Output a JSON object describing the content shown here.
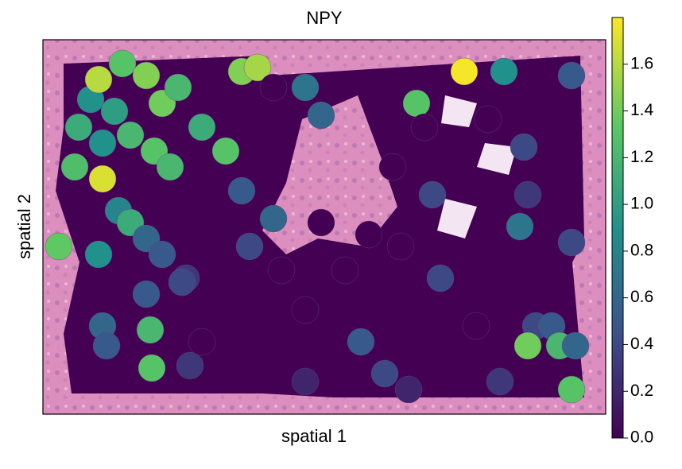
{
  "chart_data": {
    "type": "spatial",
    "title": "NPY",
    "xlabel": "spatial 1",
    "ylabel": "spatial 2",
    "colormap": "viridis",
    "clim": [
      0,
      1.8
    ],
    "cticks": [
      {
        "value": 0,
        "label": "0.0"
      },
      {
        "value": 0.2,
        "label": "0.2"
      },
      {
        "value": 0.4,
        "label": "0.4"
      },
      {
        "value": 0.6,
        "label": "0.6"
      },
      {
        "value": 0.8,
        "label": "0.8"
      },
      {
        "value": 1.0,
        "label": "1.0"
      },
      {
        "value": 1.2,
        "label": "1.2"
      },
      {
        "value": 1.4,
        "label": "1.4"
      },
      {
        "value": 1.6,
        "label": "1.6"
      }
    ],
    "xlim": [
      0,
      708
    ],
    "ylim": [
      471,
      0
    ],
    "x": [
      100,
      130,
      150,
      170,
      90,
      60,
      45,
      75,
      110,
      140,
      200,
      230,
      250,
      270,
      70,
      160,
      40,
      20,
      70,
      95,
      110,
      130,
      150,
      75,
      330,
      350,
      470,
      530,
      580,
      665,
      605,
      610,
      490,
      290,
      260,
      180,
      130,
      75,
      135,
      80,
      137,
      175,
      185,
      600,
      665,
      620,
      640,
      650,
      610,
      670,
      665,
      575,
      400,
      430,
      330,
      460,
      500,
      250,
      440,
      480,
      410,
      380,
      300,
      330,
      545,
      290,
      450,
      200,
      560,
      350
    ],
    "y": [
      30,
      45,
      80,
      60,
      90,
      75,
      110,
      130,
      120,
      140,
      110,
      140,
      40,
      35,
      50,
      160,
      160,
      260,
      270,
      215,
      230,
      250,
      270,
      175,
      60,
      95,
      80,
      40,
      40,
      45,
      135,
      195,
      195,
      225,
      260,
      300,
      320,
      360,
      365,
      385,
      413,
      305,
      410,
      235,
      255,
      360,
      360,
      385,
      385,
      385,
      440,
      430,
      380,
      420,
      430,
      440,
      300,
      190,
      160,
      110,
      245,
      290,
      290,
      340,
      360,
      60,
      260,
      380,
      100,
      230
    ],
    "values": [
      1.3,
      1.45,
      1.4,
      1.2,
      1.0,
      0.9,
      1.1,
      0.9,
      1.2,
      1.3,
      1.1,
      1.3,
      1.45,
      1.55,
      1.6,
      1.2,
      1.25,
      1.35,
      0.9,
      0.8,
      1.1,
      0.6,
      0.5,
      1.7,
      0.7,
      0.6,
      1.3,
      1.78,
      0.9,
      0.5,
      0.4,
      0.3,
      0.4,
      0.6,
      0.4,
      0.3,
      0.5,
      0.6,
      1.2,
      0.5,
      1.3,
      0.4,
      0.3,
      0.7,
      0.4,
      0.4,
      0.5,
      1.2,
      1.4,
      0.6,
      1.3,
      0.3,
      0.5,
      0.4,
      0.2,
      0.2,
      0.4,
      0.5,
      0,
      0,
      0,
      0,
      0,
      0,
      0,
      0,
      0,
      0,
      0,
      0
    ]
  }
}
